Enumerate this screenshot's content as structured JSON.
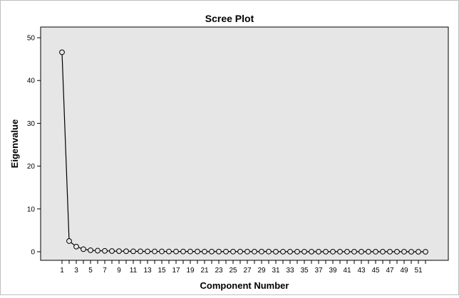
{
  "chart_data": {
    "type": "line",
    "title": "Scree Plot",
    "xlabel": "Component Number",
    "ylabel": "Eigenvalue",
    "x": [
      1,
      2,
      3,
      4,
      5,
      6,
      7,
      8,
      9,
      10,
      11,
      12,
      13,
      14,
      15,
      16,
      17,
      18,
      19,
      20,
      21,
      22,
      23,
      24,
      25,
      26,
      27,
      28,
      29,
      30,
      31,
      32,
      33,
      34,
      35,
      36,
      37,
      38,
      39,
      40,
      41,
      42,
      43,
      44,
      45,
      46,
      47,
      48,
      49,
      50,
      51,
      52
    ],
    "values": [
      46.6,
      2.5,
      1.2,
      0.6,
      0.35,
      0.25,
      0.2,
      0.16,
      0.14,
      0.12,
      0.1,
      0.09,
      0.08,
      0.07,
      0.07,
      0.06,
      0.06,
      0.05,
      0.05,
      0.05,
      0.04,
      0.04,
      0.04,
      0.04,
      0.03,
      0.03,
      0.03,
      0.03,
      0.03,
      0.03,
      0.02,
      0.02,
      0.02,
      0.02,
      0.02,
      0.02,
      0.02,
      0.02,
      0.01,
      0.01,
      0.01,
      0.01,
      0.01,
      0.01,
      0.01,
      0.01,
      0.01,
      0.01,
      0.01,
      0.0,
      0.0,
      0.0
    ],
    "x_tick_labels": [
      "1",
      "3",
      "5",
      "7",
      "9",
      "11",
      "13",
      "15",
      "17",
      "19",
      "21",
      "23",
      "25",
      "27",
      "29",
      "31",
      "33",
      "35",
      "37",
      "39",
      "41",
      "43",
      "45",
      "47",
      "49",
      "51"
    ],
    "y_tick_labels": [
      "0",
      "10",
      "20",
      "30",
      "40",
      "50"
    ],
    "ylim": [
      -2,
      52.5
    ],
    "grid": false,
    "legend": "none",
    "colors": {
      "plot_background": "#e6e6e6",
      "line": "#000000",
      "marker_fill": "#e6e6e6"
    },
    "marker": "open-circle"
  }
}
